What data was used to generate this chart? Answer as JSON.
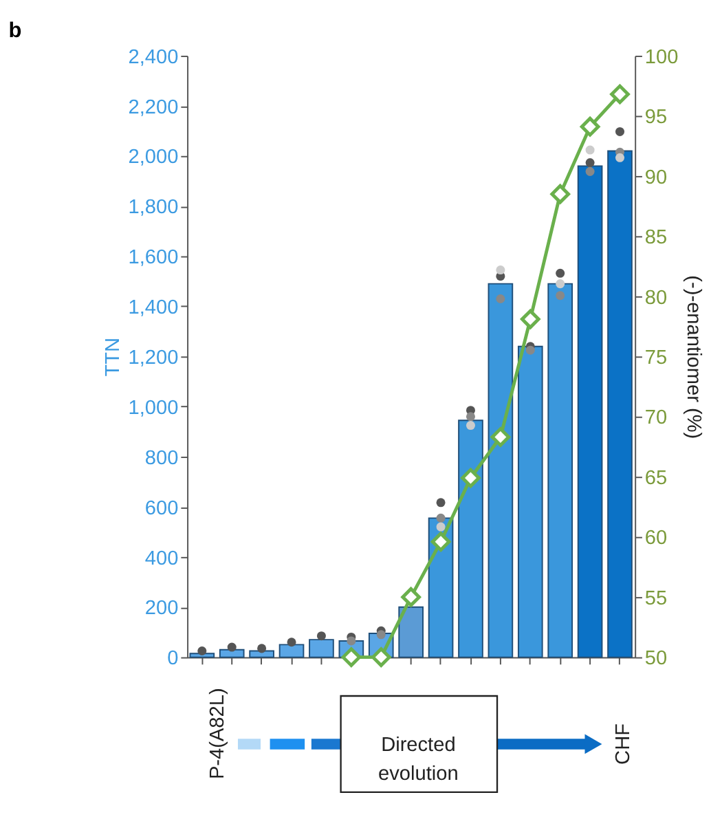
{
  "chart_data": {
    "type": "bar",
    "title": "b",
    "ylabel": "TTN",
    "y2label": "(-)-enantiomer (%)",
    "categories": [
      null,
      null,
      null,
      null,
      null,
      null,
      null,
      null,
      null,
      null,
      null,
      null,
      null,
      null,
      null
    ],
    "values": [
      15,
      30,
      25,
      50,
      70,
      65,
      95,
      200,
      555,
      945,
      1490,
      1240,
      1490,
      1960,
      2020
    ],
    "colors": [
      "#5aa6e6",
      "#5aa6e6",
      "#5aa6e6",
      "#5aa6e6",
      "#5aa6e6",
      "#5aa6e6",
      "#5aa6e6",
      "#5b9bd5",
      "#3a97dc",
      "#3a97dc",
      "#3a97dc",
      "#3a97dc",
      "#3a97dc",
      "#0b72c6",
      "#0b72c6"
    ],
    "series": [
      {
        "type": "scatter",
        "color": "#555555",
        "marker": "circle",
        "values": [
          25,
          40,
          35,
          60,
          85,
          80,
          105,
          null,
          617,
          985,
          1520,
          1240,
          1532,
          1973,
          2097
        ]
      },
      {
        "type": "scatter",
        "color": "#888888",
        "marker": "circle",
        "values": [
          null,
          null,
          null,
          null,
          null,
          65,
          90,
          null,
          555,
          960,
          1430,
          1225,
          1443,
          1938,
          2015
        ]
      },
      {
        "type": "scatter",
        "color": "#cccccc",
        "marker": "circle",
        "values": [
          null,
          null,
          null,
          null,
          null,
          null,
          null,
          null,
          520,
          925,
          1545,
          null,
          1490,
          2024,
          1993
        ]
      },
      {
        "type": "line",
        "axis": "y2",
        "color": "#6ab04c",
        "marker": "diamond",
        "values": [
          null,
          null,
          null,
          null,
          null,
          50,
          50,
          55.0,
          59.6,
          64.9,
          68.3,
          78.1,
          88.5,
          94.1,
          96.8
        ]
      }
    ],
    "ylim": [
      0,
      2400
    ],
    "yticks": [
      0,
      200,
      400,
      600,
      800,
      {
        "value": 1000,
        "label": "1,000"
      },
      {
        "value": 1200,
        "label": "1,200"
      },
      {
        "value": 1400,
        "label": "1,400"
      },
      {
        "value": 1600,
        "label": "1,600"
      },
      {
        "value": 1800,
        "label": "1,800"
      },
      {
        "value": 2000,
        "label": "2,000"
      },
      {
        "value": 2200,
        "label": "2,200"
      },
      {
        "value": 2400,
        "label": "2,400"
      }
    ],
    "y2lim": [
      50,
      100
    ],
    "y2ticks": [
      50,
      55,
      60,
      65,
      70,
      75,
      80,
      85,
      90,
      95,
      100
    ],
    "grid": false,
    "annotations": [
      "P-4(A82L)",
      "Directed evolution",
      "CHF"
    ]
  }
}
